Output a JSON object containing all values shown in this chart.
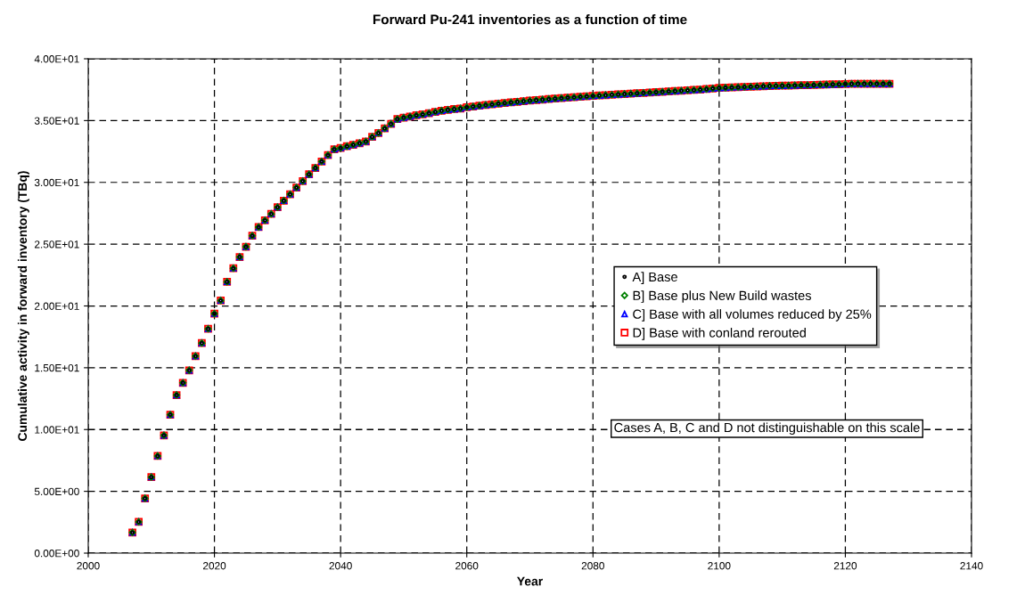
{
  "chart_data": {
    "type": "scatter",
    "title": "Forward Pu-241 inventories as a function of time",
    "xlabel": "Year",
    "ylabel": "Cumulative activity in forward inventory (TBq)",
    "x": [
      2007,
      2008,
      2009,
      2010,
      2011,
      2012,
      2013,
      2014,
      2015,
      2016,
      2017,
      2018,
      2019,
      2020,
      2021,
      2022,
      2023,
      2024,
      2025,
      2026,
      2027,
      2028,
      2029,
      2030,
      2031,
      2032,
      2033,
      2034,
      2035,
      2036,
      2037,
      2038,
      2039,
      2040,
      2041,
      2042,
      2043,
      2044,
      2045,
      2046,
      2047,
      2048,
      2049,
      2050,
      2051,
      2052,
      2053,
      2054,
      2055,
      2056,
      2057,
      2058,
      2059,
      2060,
      2061,
      2062,
      2063,
      2064,
      2065,
      2066,
      2067,
      2068,
      2069,
      2070,
      2071,
      2072,
      2073,
      2074,
      2075,
      2076,
      2077,
      2078,
      2079,
      2080,
      2081,
      2082,
      2083,
      2084,
      2085,
      2086,
      2087,
      2088,
      2089,
      2090,
      2091,
      2092,
      2093,
      2094,
      2095,
      2096,
      2097,
      2098,
      2099,
      2100,
      2101,
      2102,
      2103,
      2104,
      2105,
      2106,
      2107,
      2108,
      2109,
      2110,
      2111,
      2112,
      2113,
      2114,
      2115,
      2116,
      2117,
      2118,
      2119,
      2120,
      2121,
      2122,
      2123,
      2124,
      2125,
      2126,
      2127
    ],
    "series": [
      {
        "name": "A] Base",
        "color": "#000000",
        "marker": "circle",
        "values": [
          1.67,
          2.53,
          4.43,
          6.15,
          7.86,
          9.53,
          11.2,
          12.79,
          13.78,
          14.79,
          15.94,
          17.0,
          18.15,
          19.38,
          20.44,
          21.95,
          23.05,
          23.96,
          24.79,
          25.68,
          26.38,
          26.93,
          27.45,
          27.99,
          28.52,
          29.04,
          29.58,
          30.1,
          30.65,
          31.17,
          31.69,
          32.21,
          32.68,
          32.78,
          32.92,
          33.04,
          33.17,
          33.31,
          33.68,
          33.99,
          34.37,
          34.73,
          35.12,
          35.24,
          35.33,
          35.43,
          35.5,
          35.6,
          35.7,
          35.8,
          35.87,
          35.93,
          35.98,
          36.08,
          36.14,
          36.2,
          36.26,
          36.31,
          36.37,
          36.42,
          36.47,
          36.52,
          36.57,
          36.62,
          36.66,
          36.7,
          36.74,
          36.78,
          36.82,
          36.86,
          36.89,
          36.93,
          36.96,
          37.0,
          37.03,
          37.06,
          37.09,
          37.12,
          37.15,
          37.18,
          37.21,
          37.24,
          37.27,
          37.3,
          37.33,
          37.36,
          37.39,
          37.42,
          37.45,
          37.48,
          37.51,
          37.55,
          37.6,
          37.64,
          37.66,
          37.68,
          37.7,
          37.72,
          37.74,
          37.76,
          37.78,
          37.8,
          37.81,
          37.82,
          37.83,
          37.85,
          37.86,
          37.87,
          37.88,
          37.9,
          37.91,
          37.93,
          37.94,
          37.96,
          37.97,
          37.98,
          37.98,
          37.98,
          37.98,
          37.98,
          37.98
        ]
      },
      {
        "name": "B] Base plus New Build wastes",
        "color": "#008000",
        "marker": "diamond",
        "values": [
          1.67,
          2.53,
          4.43,
          6.15,
          7.86,
          9.53,
          11.2,
          12.79,
          13.78,
          14.79,
          15.94,
          17.0,
          18.15,
          19.38,
          20.44,
          21.95,
          23.05,
          23.96,
          24.79,
          25.68,
          26.38,
          26.93,
          27.45,
          27.99,
          28.52,
          29.04,
          29.58,
          30.1,
          30.65,
          31.17,
          31.69,
          32.21,
          32.68,
          32.78,
          32.92,
          33.04,
          33.17,
          33.31,
          33.68,
          33.99,
          34.37,
          34.73,
          35.12,
          35.24,
          35.33,
          35.43,
          35.5,
          35.6,
          35.7,
          35.8,
          35.87,
          35.93,
          35.98,
          36.08,
          36.14,
          36.2,
          36.26,
          36.31,
          36.37,
          36.42,
          36.47,
          36.52,
          36.57,
          36.62,
          36.66,
          36.7,
          36.74,
          36.78,
          36.82,
          36.86,
          36.89,
          36.93,
          36.96,
          37.0,
          37.03,
          37.06,
          37.09,
          37.12,
          37.15,
          37.18,
          37.21,
          37.24,
          37.27,
          37.3,
          37.33,
          37.36,
          37.39,
          37.42,
          37.45,
          37.48,
          37.51,
          37.55,
          37.6,
          37.64,
          37.66,
          37.68,
          37.7,
          37.72,
          37.74,
          37.76,
          37.78,
          37.8,
          37.81,
          37.82,
          37.83,
          37.85,
          37.86,
          37.87,
          37.88,
          37.9,
          37.91,
          37.93,
          37.94,
          37.96,
          37.97,
          37.98,
          37.98,
          37.98,
          37.98,
          37.98,
          37.98
        ]
      },
      {
        "name": "C] Base with all volumes reduced by 25%",
        "color": "#0000ff",
        "marker": "triangle",
        "values": [
          1.67,
          2.53,
          4.43,
          6.15,
          7.86,
          9.53,
          11.2,
          12.79,
          13.78,
          14.79,
          15.94,
          17.0,
          18.15,
          19.38,
          20.44,
          21.95,
          23.05,
          23.96,
          24.79,
          25.68,
          26.38,
          26.93,
          27.45,
          27.99,
          28.52,
          29.04,
          29.58,
          30.1,
          30.65,
          31.17,
          31.69,
          32.21,
          32.68,
          32.78,
          32.92,
          33.04,
          33.17,
          33.31,
          33.68,
          33.99,
          34.37,
          34.73,
          35.12,
          35.24,
          35.33,
          35.43,
          35.5,
          35.6,
          35.7,
          35.8,
          35.87,
          35.93,
          35.98,
          36.08,
          36.14,
          36.2,
          36.26,
          36.31,
          36.37,
          36.42,
          36.47,
          36.52,
          36.57,
          36.62,
          36.66,
          36.7,
          36.74,
          36.78,
          36.82,
          36.86,
          36.89,
          36.93,
          36.96,
          37.0,
          37.03,
          37.06,
          37.09,
          37.12,
          37.15,
          37.18,
          37.21,
          37.24,
          37.27,
          37.3,
          37.33,
          37.36,
          37.39,
          37.42,
          37.45,
          37.48,
          37.51,
          37.55,
          37.6,
          37.64,
          37.66,
          37.68,
          37.7,
          37.72,
          37.74,
          37.76,
          37.78,
          37.8,
          37.81,
          37.82,
          37.83,
          37.85,
          37.86,
          37.87,
          37.88,
          37.9,
          37.91,
          37.93,
          37.94,
          37.96,
          37.97,
          37.98,
          37.98,
          37.98,
          37.98,
          37.98,
          37.98
        ]
      },
      {
        "name": "D] Base with conland rerouted",
        "color": "#ff0000",
        "marker": "square",
        "values": [
          1.67,
          2.53,
          4.43,
          6.15,
          7.86,
          9.53,
          11.2,
          12.79,
          13.78,
          14.79,
          15.94,
          17.0,
          18.15,
          19.38,
          20.44,
          21.95,
          23.05,
          23.96,
          24.79,
          25.68,
          26.38,
          26.93,
          27.45,
          27.99,
          28.52,
          29.04,
          29.58,
          30.1,
          30.65,
          31.17,
          31.69,
          32.21,
          32.68,
          32.78,
          32.92,
          33.04,
          33.17,
          33.31,
          33.68,
          33.99,
          34.37,
          34.73,
          35.12,
          35.24,
          35.33,
          35.43,
          35.5,
          35.6,
          35.7,
          35.8,
          35.87,
          35.93,
          35.98,
          36.08,
          36.14,
          36.2,
          36.26,
          36.31,
          36.37,
          36.42,
          36.47,
          36.52,
          36.57,
          36.62,
          36.66,
          36.7,
          36.74,
          36.78,
          36.82,
          36.86,
          36.89,
          36.93,
          36.96,
          37.0,
          37.03,
          37.06,
          37.09,
          37.12,
          37.15,
          37.18,
          37.21,
          37.24,
          37.27,
          37.3,
          37.33,
          37.36,
          37.39,
          37.42,
          37.45,
          37.48,
          37.51,
          37.55,
          37.6,
          37.64,
          37.66,
          37.68,
          37.7,
          37.72,
          37.74,
          37.76,
          37.78,
          37.8,
          37.81,
          37.82,
          37.83,
          37.85,
          37.86,
          37.87,
          37.88,
          37.9,
          37.91,
          37.93,
          37.94,
          37.96,
          37.97,
          37.98,
          37.98,
          37.98,
          37.98,
          37.98,
          37.98
        ]
      }
    ],
    "xlim": [
      2000,
      2140
    ],
    "xticks": [
      2000,
      2020,
      2040,
      2060,
      2080,
      2100,
      2120,
      2140
    ],
    "ylim": [
      0,
      40
    ],
    "yticks": [
      {
        "value": 0,
        "label": "0.00E+00"
      },
      {
        "value": 5,
        "label": "5.00E+00"
      },
      {
        "value": 10,
        "label": "1.00E+01"
      },
      {
        "value": 15,
        "label": "1.50E+01"
      },
      {
        "value": 20,
        "label": "2.00E+01"
      },
      {
        "value": 25,
        "label": "2.50E+01"
      },
      {
        "value": 30,
        "label": "3.00E+01"
      },
      {
        "value": 35,
        "label": "3.50E+01"
      },
      {
        "value": 40,
        "label": "4.00E+01"
      }
    ],
    "grid": true,
    "legend": "right",
    "annotations": [
      "Cases A, B, C and D not distinguishable on this scale"
    ]
  }
}
